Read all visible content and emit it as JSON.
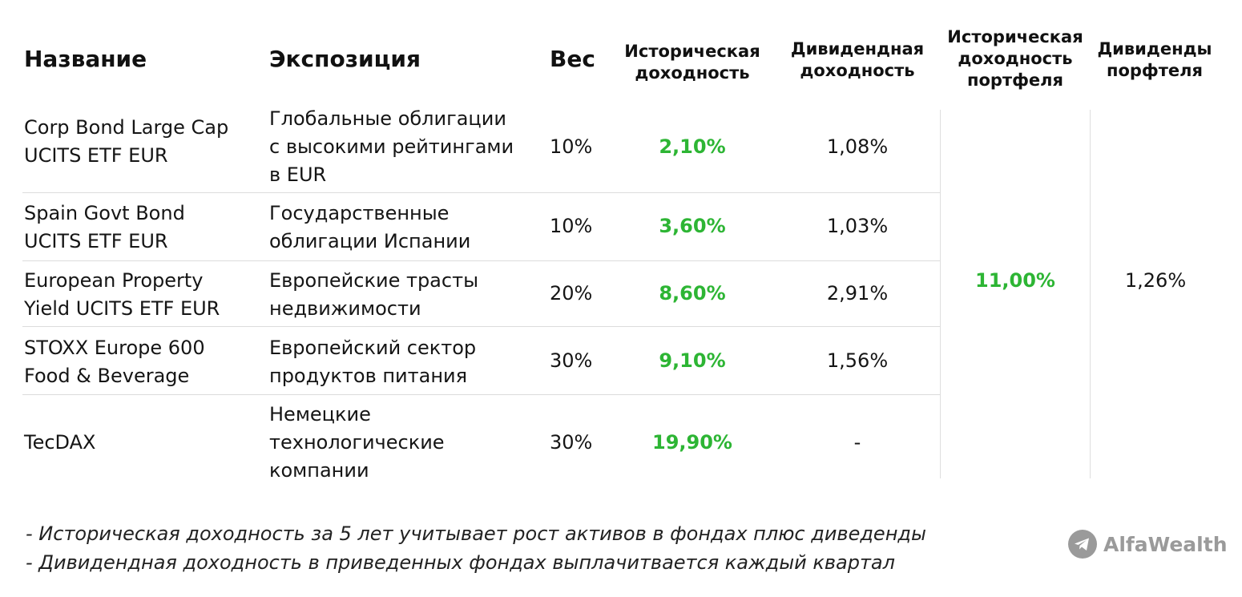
{
  "table": {
    "headers": {
      "name": "Название",
      "exposure": "Экспозиция",
      "weight": "Вес",
      "hist_return": "Историческая\nдоходность",
      "div_yield": "Дивидендная\nдоходность",
      "portfolio_hist_return": "Историческая\nдоходность\nпортфеля",
      "portfolio_dividends": "Дивиденды\nпорфтеля"
    },
    "rows": [
      {
        "name": "Corp Bond Large Cap\nUCITS ETF EUR",
        "exposure": "Глобальные облигации\nс высокими рейтингами\nв EUR",
        "weight": "10%",
        "hist_return": "2,10%",
        "div_yield": "1,08%"
      },
      {
        "name": "Spain Govt Bond\nUCITS ETF EUR",
        "exposure": "Государственные\nоблигации Испании",
        "weight": "10%",
        "hist_return": "3,60%",
        "div_yield": "1,03%"
      },
      {
        "name": "European Property\nYield UCITS ETF EUR",
        "exposure": "Европейские трасты\nнедвижимости",
        "weight": "20%",
        "hist_return": "8,60%",
        "div_yield": "2,91%"
      },
      {
        "name": "STOXX Europe 600\nFood & Beverage",
        "exposure": "Европейский сектор\nпродуктов питания",
        "weight": "30%",
        "hist_return": "9,10%",
        "div_yield": "1,56%"
      },
      {
        "name": "TecDAX",
        "exposure": "Немецкие\nтехнологические\nкомпании",
        "weight": "30%",
        "hist_return": "19,90%",
        "div_yield": "-"
      }
    ],
    "portfolio_hist_return": "11,00%",
    "portfolio_dividends": "1,26%"
  },
  "notes": [
    "- Историческая доходность за 5 лет учитывает рост активов в фондах плюс диведенды",
    "- Дивидендная доходность в приведенных фондах выплачитвается каждый квартал"
  ],
  "brand": {
    "name": "AlfaWealth",
    "icon": "telegram-icon"
  },
  "colors": {
    "positive": "#2db534",
    "brand_gray": "#9a9a9a"
  }
}
